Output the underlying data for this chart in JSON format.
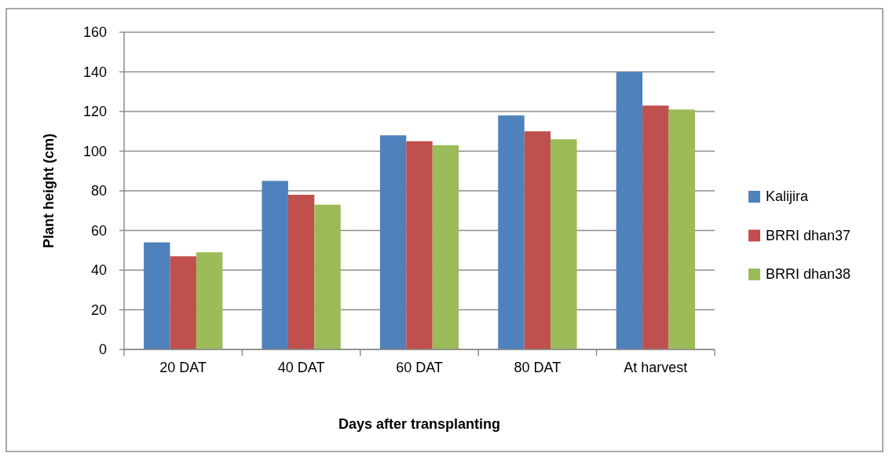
{
  "chart_data": {
    "type": "bar",
    "xlabel": "Days after transplanting",
    "ylabel": "Plant height (cm)",
    "categories": [
      "20 DAT",
      "40 DAT",
      "60 DAT",
      "80 DAT",
      "At harvest"
    ],
    "series": [
      {
        "name": "Kalijira",
        "color": "#4f81bd",
        "values": [
          54,
          85,
          108,
          118,
          140
        ]
      },
      {
        "name": "BRRI dhan37",
        "color": "#c0504d",
        "values": [
          47,
          78,
          105,
          110,
          123
        ]
      },
      {
        "name": "BRRI dhan38",
        "color": "#9bbb59",
        "values": [
          49,
          73,
          103,
          106,
          121
        ]
      }
    ],
    "ylim": [
      0,
      160
    ],
    "yticks": [
      0,
      20,
      40,
      60,
      80,
      100,
      120,
      140,
      160
    ],
    "grid": "y",
    "legend": "right"
  }
}
